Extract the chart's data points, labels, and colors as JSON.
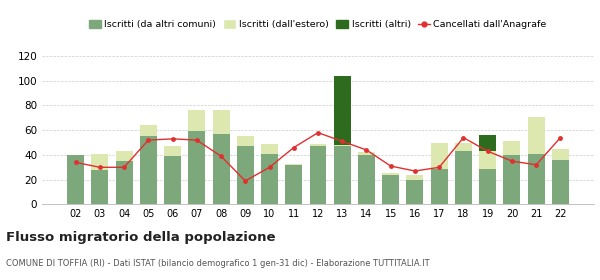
{
  "years": [
    "02",
    "03",
    "04",
    "05",
    "06",
    "07",
    "08",
    "09",
    "10",
    "11",
    "12",
    "13",
    "14",
    "15",
    "16",
    "17",
    "18",
    "19",
    "20",
    "21",
    "22"
  ],
  "iscritti_comuni": [
    40,
    28,
    35,
    55,
    39,
    59,
    57,
    47,
    41,
    32,
    47,
    47,
    40,
    24,
    20,
    29,
    43,
    29,
    40,
    41,
    36
  ],
  "iscritti_estero": [
    0,
    13,
    8,
    9,
    8,
    17,
    19,
    8,
    8,
    1,
    2,
    1,
    2,
    1,
    4,
    21,
    7,
    14,
    11,
    30,
    9
  ],
  "iscritti_altri": [
    0,
    0,
    0,
    0,
    0,
    0,
    0,
    0,
    0,
    0,
    0,
    56,
    0,
    0,
    0,
    0,
    0,
    13,
    0,
    0,
    0
  ],
  "cancellati": [
    34,
    30,
    30,
    52,
    53,
    52,
    39,
    19,
    30,
    46,
    58,
    51,
    44,
    31,
    27,
    30,
    54,
    43,
    35,
    32,
    54
  ],
  "color_comuni": "#7da87b",
  "color_estero": "#dde8b0",
  "color_altri": "#2d6b1e",
  "color_cancellati": "#e03030",
  "ylim": [
    0,
    120
  ],
  "yticks": [
    0,
    20,
    40,
    60,
    80,
    100,
    120
  ],
  "legend_labels": [
    "Iscritti (da altri comuni)",
    "Iscritti (dall'estero)",
    "Iscritti (altri)",
    "Cancellati dall'Anagrafe"
  ],
  "title": "Flusso migratorio della popolazione",
  "subtitle": "COMUNE DI TOFFIA (RI) - Dati ISTAT (bilancio demografico 1 gen-31 dic) - Elaborazione TUTTITALIA.IT",
  "bg_color": "#ffffff",
  "grid_color": "#cccccc"
}
